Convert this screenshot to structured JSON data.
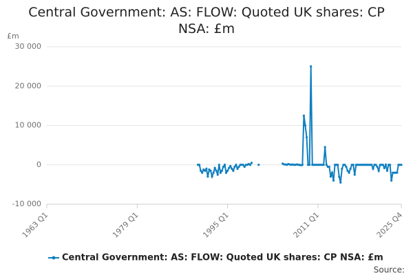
{
  "chart_data": {
    "type": "line",
    "title": "Central Government: AS: FLOW: Quoted UK shares: CP NSA: £m",
    "y_label": "£m",
    "source": "Source:",
    "categories": [
      "1963 Q1",
      null,
      null,
      null,
      null,
      null,
      null,
      null,
      null,
      null,
      null,
      null,
      null,
      null,
      null,
      null,
      null,
      null,
      null,
      null,
      null,
      null,
      null,
      null,
      null,
      null,
      null,
      null,
      null,
      null,
      null,
      null,
      null,
      null,
      null,
      null,
      null,
      null,
      null,
      null,
      null,
      null,
      null,
      null,
      null,
      null,
      null,
      null,
      null,
      null,
      null,
      null,
      null,
      null,
      null,
      null,
      null,
      null,
      null,
      null,
      null,
      null,
      null,
      null,
      "1979 Q1",
      null,
      null,
      null,
      null,
      null,
      null,
      null,
      null,
      null,
      null,
      null,
      null,
      null,
      null,
      null,
      null,
      null,
      null,
      null,
      null,
      null,
      null,
      null,
      null,
      null,
      null,
      null,
      null,
      null,
      null,
      null,
      null,
      null,
      null,
      null,
      null,
      null,
      null,
      null,
      null,
      null,
      null,
      null,
      null,
      null,
      null,
      null,
      null,
      null,
      null,
      null,
      null,
      null,
      null,
      null,
      null,
      null,
      null,
      null,
      null,
      null,
      null,
      null,
      "1995 Q1",
      null,
      null,
      null,
      null,
      null,
      null,
      null,
      null,
      null,
      null,
      null,
      null,
      null,
      null,
      null,
      null,
      null,
      null,
      null,
      null,
      null,
      null,
      null,
      null,
      null,
      null,
      null,
      null,
      null,
      null,
      null,
      null,
      null,
      null,
      null,
      null,
      null,
      null,
      null,
      null,
      null,
      null,
      null,
      null,
      null,
      null,
      null,
      null,
      null,
      null,
      null,
      null,
      null,
      null,
      null,
      null,
      null,
      null,
      null,
      null,
      null,
      null,
      null,
      "2011 Q1",
      null,
      null,
      null,
      null,
      null,
      null,
      null,
      null,
      null,
      null,
      null,
      null,
      null,
      null,
      null,
      null,
      null,
      null,
      null,
      null,
      null,
      null,
      null,
      null,
      null,
      null,
      null,
      null,
      null,
      null,
      null,
      null,
      null,
      null,
      null,
      null,
      null,
      null,
      null,
      null,
      null,
      null,
      null,
      null,
      null,
      null,
      null,
      null,
      null,
      null,
      null,
      null,
      null,
      null,
      null,
      null,
      null,
      null,
      "2025 Q4"
    ],
    "series": [
      {
        "name": "Central Government: AS: FLOW: Quoted UK shares: CP NSA: £m",
        "color": "#0f7fc0",
        "values": [
          null,
          null,
          null,
          null,
          null,
          null,
          null,
          null,
          null,
          null,
          null,
          null,
          null,
          null,
          null,
          null,
          null,
          null,
          null,
          null,
          null,
          null,
          null,
          null,
          null,
          null,
          null,
          null,
          null,
          null,
          null,
          null,
          null,
          null,
          null,
          null,
          null,
          null,
          null,
          null,
          null,
          null,
          null,
          null,
          null,
          null,
          null,
          null,
          null,
          null,
          null,
          null,
          null,
          null,
          null,
          null,
          null,
          null,
          null,
          null,
          null,
          null,
          null,
          null,
          null,
          null,
          null,
          null,
          null,
          null,
          null,
          null,
          null,
          null,
          null,
          null,
          null,
          null,
          null,
          null,
          null,
          null,
          null,
          null,
          null,
          null,
          null,
          null,
          null,
          null,
          null,
          null,
          null,
          null,
          null,
          null,
          null,
          null,
          null,
          null,
          null,
          null,
          null,
          null,
          null,
          null,
          null,
          0,
          0,
          -1500,
          -2000,
          -1200,
          -1500,
          -1000,
          -3000,
          -1200,
          -1500,
          -3000,
          -2000,
          -800,
          -1500,
          -2500,
          0,
          -2000,
          -1500,
          -500,
          0,
          -2000,
          -1500,
          -800,
          -300,
          -1000,
          -1500,
          -500,
          0,
          -1000,
          -500,
          0,
          0,
          0,
          -500,
          0,
          0,
          200,
          0,
          500,
          null,
          null,
          null,
          null,
          0,
          null,
          null,
          null,
          null,
          null,
          null,
          null,
          null,
          null,
          null,
          null,
          null,
          null,
          null,
          null,
          null,
          300,
          100,
          100,
          0,
          200,
          100,
          0,
          100,
          0,
          0,
          100,
          0,
          0,
          -100,
          0,
          12500,
          10000,
          7000,
          0,
          0,
          25000,
          0,
          0,
          0,
          0,
          0,
          0,
          0,
          0,
          0,
          4500,
          0,
          -500,
          -500,
          -3000,
          -2000,
          -4000,
          0,
          0,
          0,
          -3000,
          -4500,
          -1000,
          0,
          0,
          -500,
          -1500,
          -2000,
          -1000,
          0,
          0,
          -2500,
          0,
          0,
          0,
          0,
          0,
          0,
          0,
          0,
          0,
          0,
          0,
          0,
          -1000,
          0,
          0,
          -500,
          -1500,
          0,
          0,
          0,
          -800,
          0,
          -1500,
          0,
          0,
          -4000,
          -2000,
          -2000,
          -2000,
          -2000,
          0,
          0,
          0
        ]
      }
    ],
    "ylim": [
      -10000,
      30000
    ],
    "yticks": [
      {
        "value": -10000,
        "label": "-10 000"
      },
      0,
      {
        "value": 10000,
        "label": "10 000"
      },
      {
        "value": 20000,
        "label": "20 000"
      },
      {
        "value": 30000,
        "label": "30 000"
      }
    ],
    "grid": true
  }
}
